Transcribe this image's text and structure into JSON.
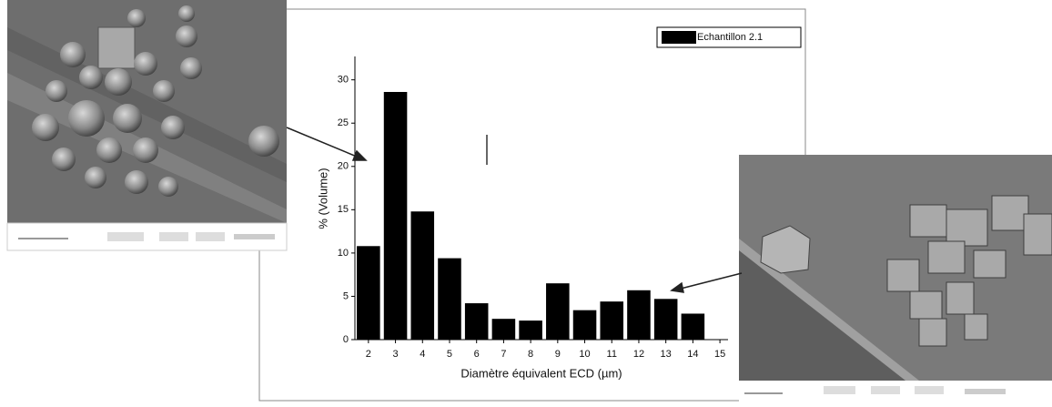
{
  "chart_data": {
    "type": "bar",
    "x": [
      2,
      3,
      4,
      5,
      6,
      7,
      8,
      9,
      10,
      11,
      12,
      13,
      14
    ],
    "series": [
      {
        "name": "Echantillon 2.1",
        "color": "#000000",
        "values": [
          10.8,
          28.6,
          14.8,
          9.4,
          4.2,
          2.4,
          2.2,
          6.5,
          3.4,
          4.4,
          5.7,
          4.7,
          3.0
        ]
      }
    ],
    "xlim": [
      1.5,
      15.3
    ],
    "xticks": [
      2,
      3,
      4,
      5,
      6,
      7,
      8,
      9,
      10,
      11,
      12,
      13,
      14,
      15
    ],
    "ylim": [
      0,
      32.7
    ],
    "yticks": [
      0,
      5,
      10,
      15,
      20,
      25,
      30
    ],
    "xlabel": "Diamètre équivalent ECD (µm)",
    "ylabel": "% (Volume)",
    "legend": "top-right"
  }
}
